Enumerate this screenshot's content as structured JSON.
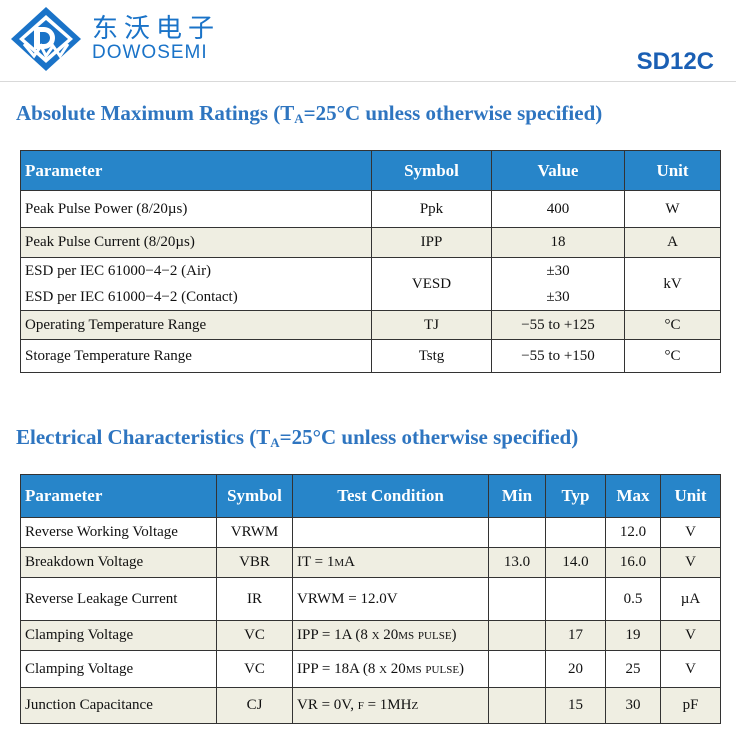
{
  "brand": {
    "name_cn": "东沃电子",
    "name_en": "DOWOSEMI",
    "part_number": "SD12C",
    "logo_color": "#1a73c8"
  },
  "abs_max": {
    "title": "Absolute Maximum Ratings (T",
    "title_sub": "A",
    "title_tail": "=25°C unless otherwise specified)",
    "headers": [
      "Parameter",
      "Symbol",
      "Value",
      "Unit"
    ],
    "rows": [
      {
        "param": "Peak Pulse Power (8/20µs)",
        "symbol": "Ppk",
        "value": "400",
        "unit": "W"
      },
      {
        "param": "Peak Pulse Current (8/20µs)",
        "symbol": "IPP",
        "value": "18",
        "unit": "A"
      },
      {
        "param": "ESD per IEC 61000−4−2 (Air)",
        "param2": "ESD per IEC 61000−4−2 (Contact)",
        "symbol": "VESD",
        "value": "±30",
        "value2": "±30",
        "unit": "kV"
      },
      {
        "param": "Operating Temperature Range",
        "symbol": "TJ",
        "value": "−55 to +125",
        "unit": "°C"
      },
      {
        "param": "Storage Temperature Range",
        "symbol": "Tstg",
        "value": "−55 to +150",
        "unit": "°C"
      }
    ]
  },
  "elec": {
    "title": "Electrical Characteristics (T",
    "title_sub": "A",
    "title_tail": "=25°C unless otherwise specified)",
    "headers": [
      "Parameter",
      "Symbol",
      "Test Condition",
      "Min",
      "Typ",
      "Max",
      "Unit"
    ],
    "rows": [
      {
        "param": "Reverse Working Voltage",
        "symbol": "VRWM",
        "cond": "",
        "min": "",
        "typ": "",
        "max": "12.0",
        "unit": "V"
      },
      {
        "param": "Breakdown Voltage",
        "symbol": "VBR",
        "cond": "IT = 1mA",
        "min": "13.0",
        "typ": "14.0",
        "max": "16.0",
        "unit": "V"
      },
      {
        "param": "Reverse Leakage Current",
        "symbol": "IR",
        "cond": "VRWM = 12.0V",
        "min": "",
        "typ": "",
        "max": "0.5",
        "unit": "µA"
      },
      {
        "param": "Clamping Voltage",
        "symbol": "VC",
        "cond": "IPP = 1A (8 x 20µs pulse)",
        "min": "",
        "typ": "17",
        "max": "19",
        "unit": "V"
      },
      {
        "param": "Clamping Voltage",
        "symbol": "VC",
        "cond": "IPP = 18A (8 x 20µs pulse)",
        "min": "",
        "typ": "20",
        "max": "25",
        "unit": "V"
      },
      {
        "param": "Junction Capacitance",
        "symbol": "CJ",
        "cond": "VR = 0V, f = 1MHz",
        "min": "",
        "typ": "15",
        "max": "30",
        "unit": "pF"
      }
    ]
  }
}
